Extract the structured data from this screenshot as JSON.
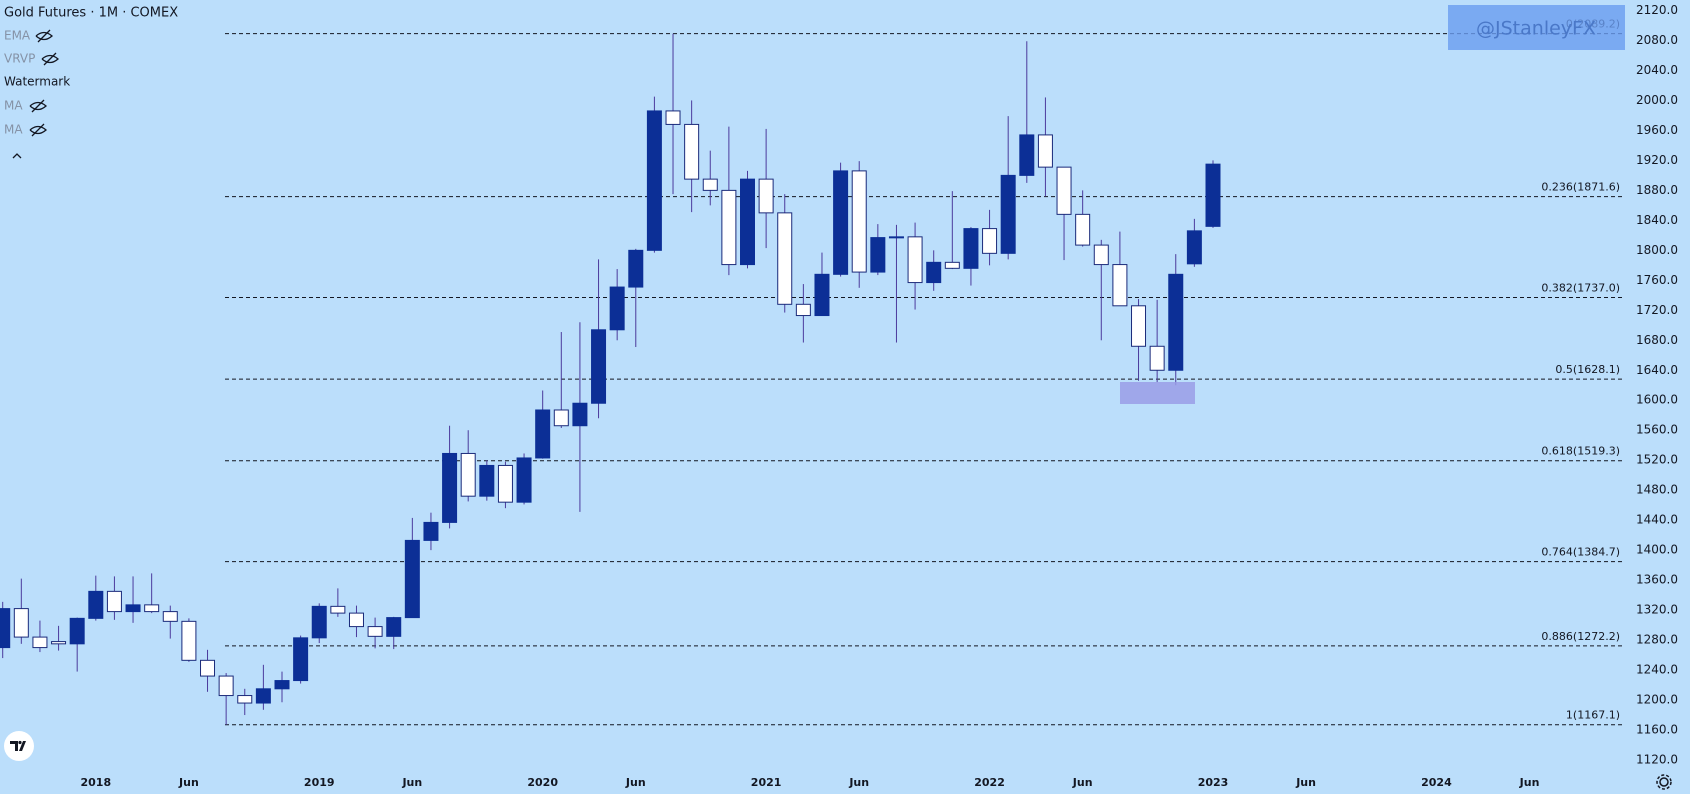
{
  "chart_data": {
    "type": "candlestick",
    "title": "Gold Futures · 1M · COMEX",
    "indicators": [
      "EMA",
      "VRVP",
      "Watermark",
      "MA",
      "MA"
    ],
    "watermark": "@JStanleyFX",
    "colors": {
      "up": "#0c2f96",
      "down": "#ffffff",
      "outline": "#1a2a7a",
      "wick": "#4b3a9c",
      "level": "#131722"
    },
    "x": [
      "2017-08",
      "2017-09",
      "2017-10",
      "2017-11",
      "2017-12",
      "2018-01",
      "2018-02",
      "2018-03",
      "2018-04",
      "2018-05",
      "2018-06",
      "2018-07",
      "2018-08",
      "2018-09",
      "2018-10",
      "2018-11",
      "2018-12",
      "2019-01",
      "2019-02",
      "2019-03",
      "2019-04",
      "2019-05",
      "2019-06",
      "2019-07",
      "2019-08",
      "2019-09",
      "2019-10",
      "2019-11",
      "2019-12",
      "2020-01",
      "2020-02",
      "2020-03",
      "2020-04",
      "2020-05",
      "2020-06",
      "2020-07",
      "2020-08",
      "2020-09",
      "2020-10",
      "2020-11",
      "2020-12",
      "2021-01",
      "2021-02",
      "2021-03",
      "2021-04",
      "2021-05",
      "2021-06",
      "2021-07",
      "2021-08",
      "2021-09",
      "2021-10",
      "2021-11",
      "2021-12",
      "2022-01",
      "2022-02",
      "2022-03",
      "2022-04",
      "2022-05",
      "2022-06",
      "2022-07",
      "2022-08",
      "2022-09",
      "2022-10",
      "2022-11",
      "2022-12",
      "2023-01"
    ],
    "open": [
      1270,
      1322,
      1284,
      1278,
      1275,
      1309,
      1345,
      1318,
      1327,
      1318,
      1305,
      1253,
      1232,
      1206,
      1196,
      1215,
      1226,
      1283,
      1325,
      1316,
      1298,
      1285,
      1310,
      1413,
      1437,
      1529,
      1472,
      1513,
      1464,
      1523,
      1587,
      1566,
      1596,
      1694,
      1751,
      1800,
      1986,
      1968,
      1895,
      1880,
      1781,
      1895,
      1850,
      1728,
      1713,
      1768,
      1906,
      1771,
      1817,
      1818,
      1757,
      1784,
      1776,
      1829,
      1796,
      1900,
      1954,
      1911,
      1848,
      1807,
      1781,
      1726,
      1672,
      1640,
      1782,
      1832
    ],
    "high": [
      1331,
      1362,
      1306,
      1299,
      1310,
      1366,
      1365,
      1365,
      1369,
      1326,
      1309,
      1267,
      1236,
      1215,
      1247,
      1238,
      1286,
      1329,
      1349,
      1326,
      1310,
      1311,
      1443,
      1450,
      1566,
      1560,
      1520,
      1518,
      1529,
      1613,
      1691,
      1704,
      1788,
      1775,
      1802,
      2005,
      2089,
      2000,
      1933,
      1965,
      1906,
      1962,
      1875,
      1755,
      1797,
      1917,
      1919,
      1835,
      1834,
      1837,
      1800,
      1879,
      1831,
      1854,
      1979,
      2079,
      2004,
      1911,
      1880,
      1814,
      1825,
      1735,
      1734,
      1795,
      1842,
      1920
    ],
    "low": [
      1256,
      1275,
      1264,
      1266,
      1238,
      1306,
      1307,
      1303,
      1316,
      1282,
      1251,
      1211,
      1167,
      1180,
      1187,
      1197,
      1222,
      1276,
      1311,
      1284,
      1269,
      1268,
      1310,
      1400,
      1429,
      1465,
      1466,
      1456,
      1461,
      1522,
      1563,
      1451,
      1576,
      1680,
      1671,
      1797,
      1875,
      1851,
      1860,
      1767,
      1776,
      1803,
      1717,
      1677,
      1714,
      1765,
      1750,
      1767,
      1677,
      1721,
      1746,
      1775,
      1753,
      1780,
      1788,
      1890,
      1872,
      1787,
      1805,
      1680,
      1728,
      1626,
      1624,
      1620,
      1778,
      1830
    ],
    "close": [
      1322,
      1284,
      1270,
      1275,
      1309,
      1345,
      1318,
      1327,
      1318,
      1305,
      1253,
      1232,
      1206,
      1196,
      1215,
      1226,
      1283,
      1325,
      1316,
      1298,
      1285,
      1310,
      1413,
      1437,
      1529,
      1472,
      1513,
      1464,
      1523,
      1587,
      1566,
      1596,
      1694,
      1751,
      1800,
      1986,
      1968,
      1895,
      1880,
      1781,
      1895,
      1850,
      1728,
      1713,
      1768,
      1906,
      1771,
      1817,
      1818,
      1757,
      1784,
      1776,
      1829,
      1796,
      1900,
      1954,
      1911,
      1848,
      1807,
      1781,
      1726,
      1672,
      1640,
      1768,
      1826,
      1915
    ],
    "levels": [
      {
        "value": 2089.2,
        "label": "0(2089.2)"
      },
      {
        "value": 1871.6,
        "label": "0.236(1871.6)"
      },
      {
        "value": 1737.0,
        "label": "0.382(1737.0)"
      },
      {
        "value": 1628.1,
        "label": "0.5(1628.1)"
      },
      {
        "value": 1519.3,
        "label": "0.618(1519.3)"
      },
      {
        "value": 1384.7,
        "label": "0.764(1384.7)"
      },
      {
        "value": 1272.2,
        "label": "0.886(1272.2)"
      },
      {
        "value": 1167.1,
        "label": "1(1167.1)"
      }
    ],
    "ylim": [
      1104,
      2134
    ],
    "yticks": [
      {
        "value": 1120,
        "label": "1120.0"
      },
      {
        "value": 1160,
        "label": "1160.0"
      },
      {
        "value": 1200,
        "label": "1200.0"
      },
      {
        "value": 1240,
        "label": "1240.0"
      },
      {
        "value": 1280,
        "label": "1280.0"
      },
      {
        "value": 1320,
        "label": "1320.0"
      },
      {
        "value": 1360,
        "label": "1360.0"
      },
      {
        "value": 1400,
        "label": "1400.0"
      },
      {
        "value": 1440,
        "label": "1440.0"
      },
      {
        "value": 1480,
        "label": "1480.0"
      },
      {
        "value": 1520,
        "label": "1520.0"
      },
      {
        "value": 1560,
        "label": "1560.0"
      },
      {
        "value": 1600,
        "label": "1600.0"
      },
      {
        "value": 1640,
        "label": "1640.0"
      },
      {
        "value": 1680,
        "label": "1680.0"
      },
      {
        "value": 1720,
        "label": "1720.0"
      },
      {
        "value": 1760,
        "label": "1760.0"
      },
      {
        "value": 1800,
        "label": "1800.0"
      },
      {
        "value": 1840,
        "label": "1840.0"
      },
      {
        "value": 1880,
        "label": "1880.0"
      },
      {
        "value": 1920,
        "label": "1920.0"
      },
      {
        "value": 1960,
        "label": "1960.0"
      },
      {
        "value": 2000,
        "label": "2000.0"
      },
      {
        "value": 2040,
        "label": "2040.0"
      },
      {
        "value": 2080,
        "label": "2080.0"
      },
      {
        "value": 2120,
        "label": "2120.0"
      }
    ],
    "xticks": [
      {
        "value": "2018-01",
        "label": "2018"
      },
      {
        "value": "2018-06",
        "label": "Jun"
      },
      {
        "value": "2019-01",
        "label": "2019"
      },
      {
        "value": "2019-06",
        "label": "Jun"
      },
      {
        "value": "2020-01",
        "label": "2020"
      },
      {
        "value": "2020-06",
        "label": "Jun"
      },
      {
        "value": "2021-01",
        "label": "2021"
      },
      {
        "value": "2021-06",
        "label": "Jun"
      },
      {
        "value": "2022-01",
        "label": "2022"
      },
      {
        "value": "2022-06",
        "label": "Jun"
      },
      {
        "value": "2023-01",
        "label": "2023"
      },
      {
        "value": "2023-06",
        "label": "Jun"
      },
      {
        "value": "2024-01",
        "label": "2024"
      },
      {
        "value": "2024-06",
        "label": "Jun"
      }
    ]
  }
}
